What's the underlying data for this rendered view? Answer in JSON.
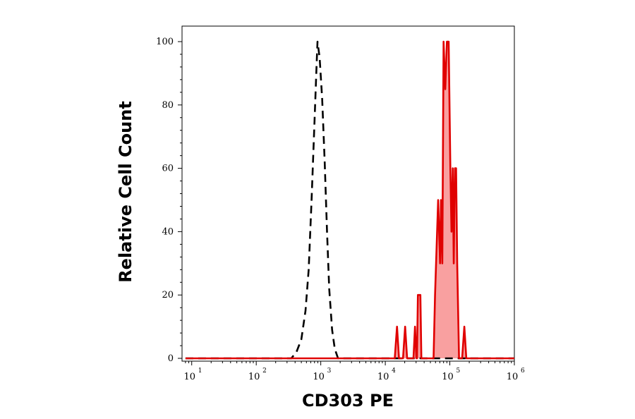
{
  "chart_data": {
    "type": "line",
    "title": "",
    "xlabel": "CD303 PE",
    "ylabel": "Relative Cell Count",
    "x_scale": "log",
    "xlim": [
      10,
      1000000
    ],
    "ylim": [
      0,
      100
    ],
    "grid": false,
    "legend": "none",
    "x_ticks": [
      {
        "base": "10",
        "exp": "1",
        "value": 10
      },
      {
        "base": "10",
        "exp": "2",
        "value": 100
      },
      {
        "base": "10",
        "exp": "3",
        "value": 1000
      },
      {
        "base": "10",
        "exp": "4",
        "value": 10000
      },
      {
        "base": "10",
        "exp": "5",
        "value": 100000
      },
      {
        "base": "10",
        "exp": "6",
        "value": 1000000
      }
    ],
    "y_ticks": [
      "0",
      "20",
      "40",
      "60",
      "80",
      "100"
    ],
    "series": [
      {
        "style": "dashed",
        "color": "#000000",
        "fill": false,
        "points": [
          [
            8,
            0
          ],
          [
            350,
            0
          ],
          [
            420,
            2
          ],
          [
            500,
            6
          ],
          [
            580,
            15
          ],
          [
            650,
            28
          ],
          [
            720,
            50
          ],
          [
            800,
            75
          ],
          [
            860,
            92
          ],
          [
            890,
            100
          ],
          [
            960,
            95
          ],
          [
            1050,
            82
          ],
          [
            1150,
            62
          ],
          [
            1250,
            40
          ],
          [
            1350,
            22
          ],
          [
            1500,
            9
          ],
          [
            1650,
            3
          ],
          [
            1850,
            0
          ],
          [
            1000000,
            0
          ]
        ]
      },
      {
        "style": "solid",
        "color": "#e00000",
        "fill": true,
        "fill_color": "#f9a0a0",
        "points": [
          [
            8,
            0
          ],
          [
            14000,
            0
          ],
          [
            15200,
            10
          ],
          [
            16300,
            0
          ],
          [
            18800,
            0
          ],
          [
            20300,
            10
          ],
          [
            21800,
            0
          ],
          [
            27300,
            0
          ],
          [
            28900,
            10
          ],
          [
            30300,
            0
          ],
          [
            31000,
            0
          ],
          [
            32000,
            20
          ],
          [
            35000,
            20
          ],
          [
            36200,
            0
          ],
          [
            56000,
            0
          ],
          [
            59000,
            20
          ],
          [
            66000,
            50
          ],
          [
            70500,
            30
          ],
          [
            73000,
            50
          ],
          [
            76500,
            30
          ],
          [
            80000,
            100
          ],
          [
            85000,
            85
          ],
          [
            90000,
            100
          ],
          [
            96000,
            100
          ],
          [
            102000,
            60
          ],
          [
            106000,
            40
          ],
          [
            111000,
            60
          ],
          [
            115000,
            30
          ],
          [
            120000,
            60
          ],
          [
            125000,
            60
          ],
          [
            130000,
            30
          ],
          [
            139000,
            0
          ],
          [
            155000,
            0
          ],
          [
            168000,
            10
          ],
          [
            180000,
            0
          ],
          [
            1000000,
            0
          ]
        ]
      }
    ]
  }
}
